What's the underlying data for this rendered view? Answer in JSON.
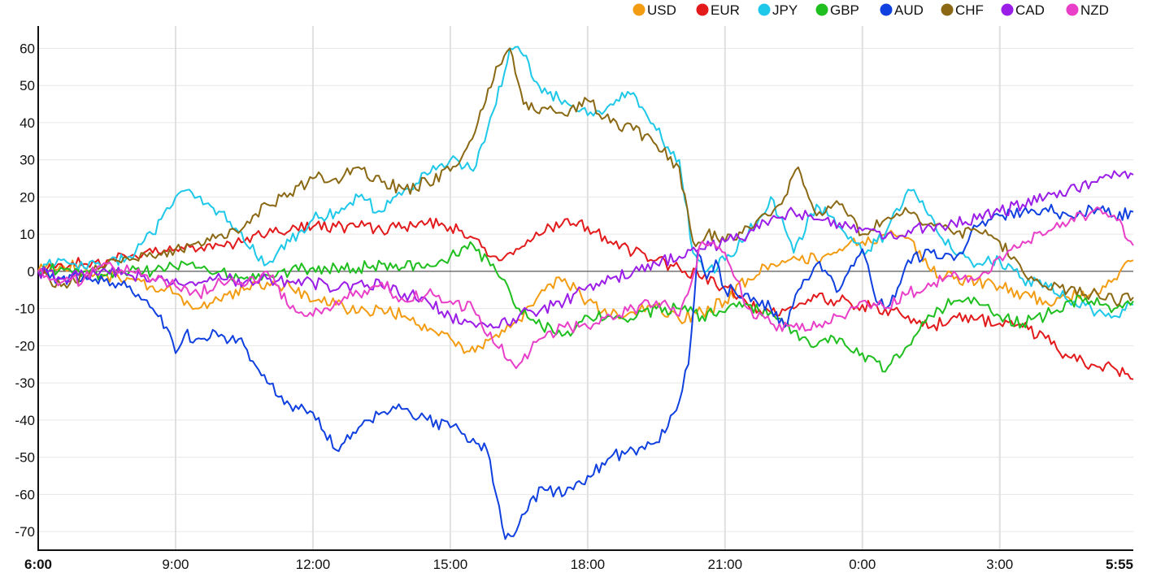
{
  "chart_data": {
    "type": "line",
    "title": "",
    "xlabel": "",
    "ylabel": "",
    "ylim": [
      -75,
      66
    ],
    "yticks": [
      60,
      50,
      40,
      30,
      20,
      10,
      0,
      -10,
      -20,
      -30,
      -40,
      -50,
      -60,
      -70
    ],
    "x_range_hours": [
      0,
      23.9167
    ],
    "xticks": [
      {
        "label": "6:00",
        "hour": 0,
        "bold": true
      },
      {
        "label": "9:00",
        "hour": 3,
        "bold": false
      },
      {
        "label": "12:00",
        "hour": 6,
        "bold": false
      },
      {
        "label": "15:00",
        "hour": 9,
        "bold": false
      },
      {
        "label": "18:00",
        "hour": 12,
        "bold": false
      },
      {
        "label": "21:00",
        "hour": 15,
        "bold": false
      },
      {
        "label": "0:00",
        "hour": 18,
        "bold": false
      },
      {
        "label": "3:00",
        "hour": 21,
        "bold": false
      },
      {
        "label": "5:55",
        "hour": 23.9167,
        "bold": true
      }
    ],
    "grid": true,
    "zero_line": true,
    "legend_position": "top-right",
    "series": [
      {
        "name": "USD",
        "color": "#f39c12",
        "x": [
          0,
          0.5,
          1,
          1.5,
          2,
          2.5,
          3,
          3.5,
          4,
          4.5,
          5,
          5.5,
          6,
          6.5,
          7,
          7.5,
          8,
          8.5,
          9,
          9.3,
          9.6,
          10,
          10.5,
          11,
          11.5,
          12,
          12.5,
          13,
          13.5,
          14,
          14.5,
          15,
          15.5,
          16,
          16.5,
          17,
          17.5,
          18,
          18.5,
          19,
          19.5,
          20,
          20.5,
          21,
          21.5,
          22,
          22.5,
          23,
          23.5,
          23.9167
        ],
        "y": [
          0,
          2,
          1,
          -1,
          -2,
          -4,
          -6,
          -10,
          -8,
          -5,
          -3,
          -4,
          -8,
          -9,
          -11,
          -10,
          -12,
          -16,
          -18,
          -22,
          -20,
          -17,
          -13,
          -5,
          -2,
          -8,
          -12,
          -11,
          -9,
          -13,
          -11,
          -8,
          -2,
          2,
          4,
          3,
          6,
          8,
          10,
          9,
          0,
          -2,
          -3,
          -4,
          -6,
          -8,
          -7,
          -6,
          -2,
          3
        ]
      },
      {
        "name": "EUR",
        "color": "#e31a1c",
        "x": [
          0,
          0.5,
          1,
          1.5,
          2,
          2.5,
          3,
          3.5,
          4,
          4.5,
          5,
          5.5,
          6,
          6.5,
          7,
          7.5,
          8,
          8.5,
          9,
          9.5,
          10,
          10.5,
          11,
          11.5,
          12,
          12.5,
          13,
          13.5,
          14,
          14.5,
          15,
          15.5,
          16,
          16.5,
          17,
          17.5,
          18,
          18.5,
          19,
          19.5,
          20,
          20.5,
          21,
          21.5,
          22,
          22.5,
          23,
          23.5,
          23.9167
        ],
        "y": [
          0,
          2,
          2,
          3,
          4,
          5,
          6,
          6,
          7,
          8,
          10,
          11,
          12,
          12,
          12,
          11,
          12,
          13,
          12,
          9,
          4,
          6,
          10,
          14,
          12,
          8,
          5,
          3,
          1,
          -2,
          -4,
          -9,
          -11,
          -10,
          -7,
          -8,
          -9,
          -10,
          -12,
          -15,
          -12,
          -13,
          -14,
          -15,
          -18,
          -23,
          -25,
          -26,
          -29
        ]
      },
      {
        "name": "JPY",
        "color": "#1ec8e8",
        "x": [
          0,
          0.5,
          1,
          1.5,
          2,
          2.5,
          3,
          3.3,
          3.6,
          4,
          4.5,
          5,
          5.5,
          6,
          6.5,
          7,
          7.5,
          8,
          8.5,
          9,
          9.5,
          10,
          10.3,
          10.6,
          11,
          11.5,
          12,
          12.5,
          13,
          13.5,
          14,
          14.3,
          14.6,
          15,
          15.5,
          16,
          16.5,
          17,
          17.5,
          18,
          18.5,
          19,
          19.5,
          20,
          20.5,
          21,
          21.5,
          22,
          22.5,
          23,
          23.5,
          23.9167
        ],
        "y": [
          0,
          3,
          1,
          2,
          4,
          10,
          20,
          22,
          18,
          16,
          8,
          2,
          8,
          14,
          16,
          20,
          16,
          22,
          26,
          30,
          27,
          45,
          60,
          58,
          48,
          46,
          42,
          45,
          48,
          38,
          30,
          5,
          0,
          3,
          10,
          20,
          5,
          18,
          12,
          5,
          10,
          22,
          15,
          5,
          2,
          3,
          -2,
          -3,
          -8,
          -10,
          -12,
          -9
        ]
      },
      {
        "name": "GBP",
        "color": "#1fbf1f",
        "x": [
          0,
          0.5,
          1,
          1.5,
          2,
          2.5,
          3,
          3.5,
          4,
          4.5,
          5,
          5.5,
          6,
          6.5,
          7,
          7.5,
          8,
          8.5,
          9,
          9.5,
          10,
          10.5,
          11,
          11.5,
          12,
          12.5,
          13,
          13.5,
          14,
          14.5,
          15,
          15.5,
          16,
          16.5,
          17,
          17.5,
          18,
          18.5,
          19,
          19.5,
          20,
          20.5,
          21,
          21.5,
          22,
          22.5,
          23,
          23.5,
          23.9167
        ],
        "y": [
          0,
          1,
          0,
          -1,
          0,
          0,
          1,
          1,
          0,
          -2,
          -1,
          0,
          1,
          1,
          1,
          2,
          1,
          2,
          4,
          7,
          0,
          -10,
          -15,
          -17,
          -12,
          -12,
          -13,
          -10,
          -10,
          -12,
          -11,
          -9,
          -11,
          -16,
          -20,
          -18,
          -22,
          -27,
          -20,
          -12,
          -8,
          -8,
          -12,
          -14,
          -12,
          -8,
          -8,
          -10,
          -8
        ]
      },
      {
        "name": "AUD",
        "color": "#1040e0",
        "x": [
          0,
          0.5,
          1,
          1.5,
          2,
          2.5,
          2.8,
          3,
          3.2,
          3.5,
          4,
          4.5,
          5,
          5.5,
          6,
          6.5,
          7,
          7.5,
          8,
          8.5,
          9,
          9.5,
          9.8,
          10,
          10.2,
          10.5,
          11,
          11.5,
          12,
          12.5,
          13,
          13.5,
          14,
          14.2,
          14.4,
          14.6,
          14.8,
          15,
          15.5,
          16,
          16.3,
          16.6,
          17,
          17.5,
          18,
          18.3,
          18.6,
          19,
          19.5,
          20,
          20.5,
          21,
          21.5,
          22,
          22.5,
          23,
          23.5,
          23.9167
        ],
        "y": [
          0,
          -2,
          -1,
          -2,
          -4,
          -10,
          -15,
          -22,
          -17,
          -18,
          -17,
          -20,
          -30,
          -36,
          -38,
          -48,
          -42,
          -38,
          -37,
          -40,
          -42,
          -45,
          -48,
          -60,
          -72,
          -68,
          -58,
          -60,
          -55,
          -50,
          -48,
          -46,
          -35,
          -25,
          5,
          -2,
          3,
          -5,
          -6,
          -10,
          -15,
          -5,
          2,
          -5,
          6,
          -8,
          -9,
          3,
          5,
          3,
          12,
          15,
          16,
          17,
          15,
          17,
          15,
          16
        ]
      },
      {
        "name": "CHF",
        "color": "#8b6914",
        "x": [
          0,
          0.5,
          1,
          1.5,
          2,
          2.5,
          3,
          3.5,
          4,
          4.5,
          5,
          5.5,
          6,
          6.5,
          7,
          7.5,
          8,
          8.5,
          9,
          9.3,
          9.6,
          10,
          10.3,
          10.6,
          11,
          11.5,
          12,
          12.5,
          13,
          13.5,
          14,
          14.3,
          14.6,
          15,
          15.5,
          16,
          16.3,
          16.6,
          17,
          17.5,
          18,
          18.5,
          19,
          19.5,
          20,
          20.5,
          21,
          21.5,
          22,
          22.5,
          23,
          23.5,
          23.9167
        ],
        "y": [
          0,
          -4,
          -1,
          2,
          3,
          4,
          6,
          8,
          10,
          12,
          18,
          21,
          25,
          25,
          28,
          24,
          22,
          24,
          27,
          32,
          40,
          55,
          60,
          45,
          44,
          42,
          46,
          40,
          38,
          34,
          28,
          8,
          10,
          8,
          12,
          15,
          20,
          28,
          15,
          18,
          10,
          14,
          16,
          13,
          10,
          11,
          8,
          0,
          -4,
          -5,
          -6,
          -8,
          -7
        ]
      },
      {
        "name": "CAD",
        "color": "#9b1de8",
        "x": [
          0,
          0.5,
          1,
          1.5,
          2,
          2.5,
          3,
          3.5,
          4,
          4.5,
          5,
          5.5,
          6,
          6.5,
          7,
          7.5,
          8,
          8.5,
          9,
          9.5,
          10,
          10.5,
          11,
          11.5,
          12,
          12.5,
          13,
          13.5,
          14,
          14.5,
          15,
          15.5,
          16,
          16.5,
          17,
          17.5,
          18,
          18.5,
          19,
          19.5,
          20,
          20.5,
          21,
          21.5,
          22,
          22.5,
          23,
          23.5,
          23.9167
        ],
        "y": [
          0,
          -2,
          -1,
          0,
          -1,
          -2,
          -2,
          -3,
          -2,
          -3,
          -2,
          -3,
          -3,
          -5,
          -3,
          -4,
          -6,
          -8,
          -12,
          -14,
          -15,
          -12,
          -10,
          -8,
          -4,
          -2,
          0,
          2,
          4,
          6,
          8,
          10,
          14,
          16,
          14,
          13,
          11,
          9,
          11,
          12,
          13,
          14,
          16,
          18,
          20,
          22,
          24,
          27,
          26
        ]
      },
      {
        "name": "NZD",
        "color": "#e83ec8",
        "x": [
          0,
          0.5,
          1,
          1.5,
          2,
          2.5,
          3,
          3.5,
          4,
          4.5,
          5,
          5.5,
          6,
          6.5,
          7,
          7.5,
          8,
          8.5,
          9,
          9.5,
          10,
          10.5,
          11,
          11.5,
          12,
          12.5,
          13,
          13.5,
          14,
          14.5,
          15,
          15.5,
          16,
          16.5,
          17,
          17.5,
          18,
          18.5,
          19,
          19.5,
          20,
          20.5,
          21,
          21.5,
          22,
          22.5,
          23,
          23.5,
          23.9167
        ],
        "y": [
          0,
          -3,
          -2,
          2,
          0,
          -2,
          -4,
          -6,
          -3,
          -4,
          0,
          -10,
          -12,
          -8,
          -6,
          -3,
          -8,
          -6,
          -8,
          -10,
          -20,
          -25,
          -18,
          -15,
          -15,
          -12,
          -10,
          -8,
          -12,
          8,
          5,
          -10,
          -14,
          -15,
          -15,
          -12,
          -8,
          -10,
          -6,
          -4,
          0,
          -2,
          4,
          8,
          10,
          13,
          16,
          15,
          7
        ]
      }
    ]
  }
}
